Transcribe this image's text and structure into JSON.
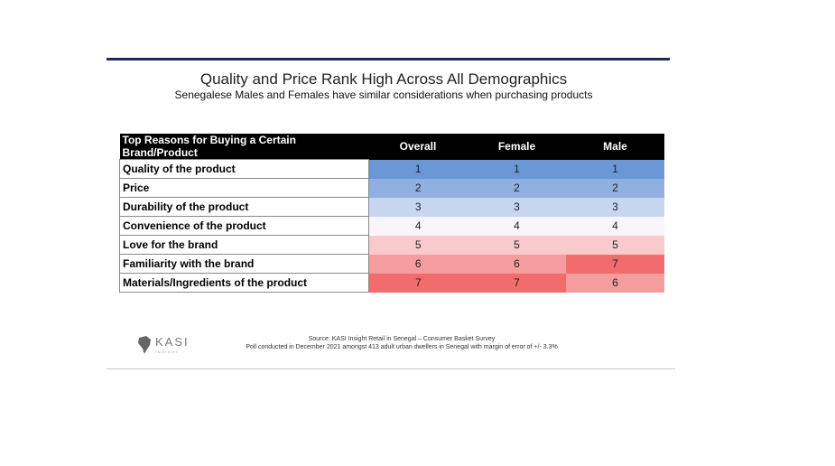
{
  "header": {
    "title": "Quality and Price Rank High Across All Demographics",
    "subtitle": "Senegalese Males and Females have similar considerations when purchasing products"
  },
  "table": {
    "columns": [
      "Top Reasons for Buying a Certain Brand/Product",
      "Overall",
      "Female",
      "Male"
    ],
    "rows": [
      {
        "label": "Quality of the product",
        "values": [
          1,
          1,
          1
        ]
      },
      {
        "label": "Price",
        "values": [
          2,
          2,
          2
        ]
      },
      {
        "label": "Durability of the product",
        "values": [
          3,
          3,
          3
        ]
      },
      {
        "label": "Convenience of the product",
        "values": [
          4,
          4,
          4
        ]
      },
      {
        "label": "Love for the brand",
        "values": [
          5,
          5,
          5
        ]
      },
      {
        "label": "Familiarity with the brand",
        "values": [
          6,
          6,
          7
        ]
      },
      {
        "label": "Materials/Ingredients of the product",
        "values": [
          7,
          7,
          6
        ]
      }
    ]
  },
  "logo": {
    "name": "KASI",
    "tagline": "INSIGHT"
  },
  "footer": {
    "source": "Source: KASI Insight Retail in Senegal – Consumer Basket Survey",
    "note": "Poll conducted in December 2021 amongst 413 adult urban dwellers in Senegal with margin of error of +/- 3.3%"
  }
}
